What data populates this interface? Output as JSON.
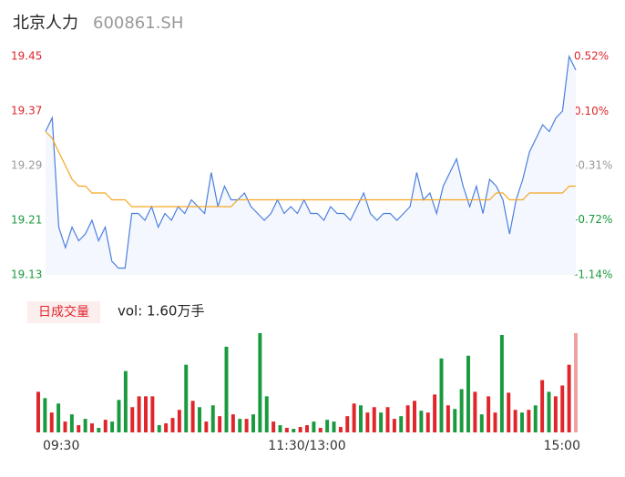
{
  "header": {
    "name": "北京人力",
    "code": "600861.SH"
  },
  "chart_data": [
    {
      "type": "line",
      "x": [
        0,
        3,
        6,
        9,
        12,
        15,
        18,
        21,
        24,
        27,
        30,
        33,
        36,
        39,
        42,
        45,
        48,
        51,
        54,
        57,
        60,
        63,
        66,
        69,
        72,
        75,
        78,
        81,
        84,
        87,
        90,
        93,
        96,
        99,
        102,
        105,
        108,
        111,
        114,
        117,
        120,
        123,
        126,
        129,
        132,
        135,
        138,
        141,
        144,
        147,
        150,
        153,
        156,
        159,
        162,
        165,
        168,
        171,
        174,
        177,
        180,
        183,
        186,
        189,
        192,
        195,
        198,
        201,
        204,
        207,
        210,
        213,
        216,
        219,
        222,
        225,
        228,
        231,
        234,
        237,
        240
      ],
      "xlim": [
        0,
        240
      ],
      "ylim": [
        19.13,
        19.45
      ],
      "yticks": [
        19.45,
        19.37,
        19.29,
        19.21,
        19.13
      ],
      "ytick_colors": [
        "#e0252b",
        "#e0252b",
        "#999999",
        "#1a9a3e",
        "#1a9a3e"
      ],
      "y2lim": [
        -1.14,
        0.52
      ],
      "y2ticks": [
        {
          "value": 0.52,
          "label": "0.52%"
        },
        {
          "value": 0.1,
          "label": "0.10%"
        },
        {
          "value": -0.31,
          "label": "-0.31%"
        },
        {
          "value": -0.72,
          "label": "-0.72%"
        },
        {
          "value": -1.14,
          "label": "-1.14%"
        }
      ],
      "area_color": "#f4f7fd",
      "series": [
        {
          "color": "#4a7fe0",
          "values": [
            19.34,
            19.36,
            19.2,
            19.17,
            19.2,
            19.18,
            19.19,
            19.21,
            19.18,
            19.2,
            19.15,
            19.14,
            19.14,
            19.22,
            19.22,
            19.21,
            19.23,
            19.2,
            19.22,
            19.21,
            19.23,
            19.22,
            19.24,
            19.23,
            19.22,
            19.28,
            19.23,
            19.26,
            19.24,
            19.24,
            19.25,
            19.23,
            19.22,
            19.21,
            19.22,
            19.24,
            19.22,
            19.23,
            19.22,
            19.24,
            19.22,
            19.22,
            19.21,
            19.23,
            19.22,
            19.22,
            19.21,
            19.23,
            19.25,
            19.22,
            19.21,
            19.22,
            19.22,
            19.21,
            19.22,
            19.23,
            19.28,
            19.24,
            19.25,
            19.22,
            19.26,
            19.28,
            19.3,
            19.26,
            19.23,
            19.26,
            19.22,
            19.27,
            19.26,
            19.24,
            19.19,
            19.24,
            19.27,
            19.31,
            19.33,
            19.35,
            19.34,
            19.36,
            19.37,
            19.45,
            19.43
          ]
        },
        {
          "color": "#f5a623",
          "values": [
            19.34,
            19.33,
            19.31,
            19.29,
            19.27,
            19.26,
            19.26,
            19.25,
            19.25,
            19.25,
            19.24,
            19.24,
            19.24,
            19.23,
            19.23,
            19.23,
            19.23,
            19.23,
            19.23,
            19.23,
            19.23,
            19.23,
            19.23,
            19.23,
            19.23,
            19.23,
            19.23,
            19.23,
            19.23,
            19.24,
            19.24,
            19.24,
            19.24,
            19.24,
            19.24,
            19.24,
            19.24,
            19.24,
            19.24,
            19.24,
            19.24,
            19.24,
            19.24,
            19.24,
            19.24,
            19.24,
            19.24,
            19.24,
            19.24,
            19.24,
            19.24,
            19.24,
            19.24,
            19.24,
            19.24,
            19.24,
            19.24,
            19.24,
            19.24,
            19.24,
            19.24,
            19.24,
            19.24,
            19.24,
            19.24,
            19.24,
            19.24,
            19.24,
            19.25,
            19.25,
            19.24,
            19.24,
            19.24,
            19.25,
            19.25,
            19.25,
            19.25,
            19.25,
            19.25,
            19.26,
            19.26
          ]
        }
      ]
    },
    {
      "type": "bar",
      "legend_label": "日成交量",
      "annotation": "vol: 1.60万手",
      "x": [
        0,
        3,
        6,
        9,
        12,
        15,
        18,
        21,
        24,
        27,
        30,
        33,
        36,
        39,
        42,
        45,
        48,
        51,
        54,
        57,
        60,
        63,
        66,
        69,
        72,
        75,
        78,
        81,
        84,
        87,
        90,
        93,
        96,
        99,
        102,
        105,
        108,
        111,
        114,
        117,
        120,
        123,
        126,
        129,
        132,
        135,
        138,
        141,
        144,
        147,
        150,
        153,
        156,
        159,
        162,
        165,
        168,
        171,
        174,
        177,
        180,
        183,
        186,
        189,
        192,
        195,
        198,
        201,
        204,
        207,
        210,
        213,
        216,
        219,
        222,
        225,
        228,
        231,
        234,
        237,
        240
      ],
      "xlim": [
        0,
        240
      ],
      "ylim": [
        0,
        110
      ],
      "xticks": [
        {
          "value": 0,
          "label": "09:30"
        },
        {
          "value": 120,
          "label": "11:30/13:00"
        },
        {
          "value": 240,
          "label": "15:00"
        }
      ],
      "values": [
        45,
        38,
        22,
        32,
        12,
        20,
        8,
        15,
        10,
        5,
        14,
        12,
        36,
        68,
        28,
        40,
        40,
        40,
        8,
        10,
        16,
        25,
        75,
        35,
        28,
        12,
        30,
        18,
        95,
        20,
        15,
        15,
        20,
        110,
        40,
        12,
        8,
        5,
        4,
        6,
        8,
        12,
        5,
        14,
        12,
        6,
        18,
        32,
        30,
        22,
        28,
        22,
        28,
        15,
        18,
        30,
        35,
        24,
        22,
        42,
        82,
        30,
        26,
        48,
        85,
        45,
        20,
        40,
        22,
        108,
        44,
        25,
        22,
        25,
        30,
        58,
        45,
        40,
        52,
        75,
        110
      ],
      "colors": [
        "#e0252b",
        "#1a9a3e",
        "#e0252b",
        "#1a9a3e",
        "#e0252b",
        "#1a9a3e",
        "#e0252b",
        "#1a9a3e",
        "#e0252b",
        "#1a9a3e",
        "#e0252b",
        "#1a9a3e",
        "#1a9a3e",
        "#1a9a3e",
        "#e0252b",
        "#e0252b",
        "#e0252b",
        "#e0252b",
        "#1a9a3e",
        "#e0252b",
        "#e0252b",
        "#e0252b",
        "#1a9a3e",
        "#e0252b",
        "#1a9a3e",
        "#e0252b",
        "#1a9a3e",
        "#e0252b",
        "#1a9a3e",
        "#e0252b",
        "#1a9a3e",
        "#e0252b",
        "#1a9a3e",
        "#1a9a3e",
        "#1a9a3e",
        "#e0252b",
        "#1a9a3e",
        "#e0252b",
        "#1a9a3e",
        "#e0252b",
        "#e0252b",
        "#1a9a3e",
        "#e0252b",
        "#1a9a3e",
        "#1a9a3e",
        "#e0252b",
        "#e0252b",
        "#e0252b",
        "#1a9a3e",
        "#e0252b",
        "#e0252b",
        "#1a9a3e",
        "#e0252b",
        "#e0252b",
        "#1a9a3e",
        "#e0252b",
        "#e0252b",
        "#1a9a3e",
        "#e0252b",
        "#e0252b",
        "#1a9a3e",
        "#e0252b",
        "#1a9a3e",
        "#1a9a3e",
        "#1a9a3e",
        "#e0252b",
        "#1a9a3e",
        "#e0252b",
        "#e0252b",
        "#1a9a3e",
        "#e0252b",
        "#e0252b",
        "#1a9a3e",
        "#e0252b",
        "#1a9a3e",
        "#e0252b",
        "#1a9a3e",
        "#e0252b",
        "#e0252b",
        "#e0252b",
        "#f0a0a0"
      ]
    }
  ]
}
